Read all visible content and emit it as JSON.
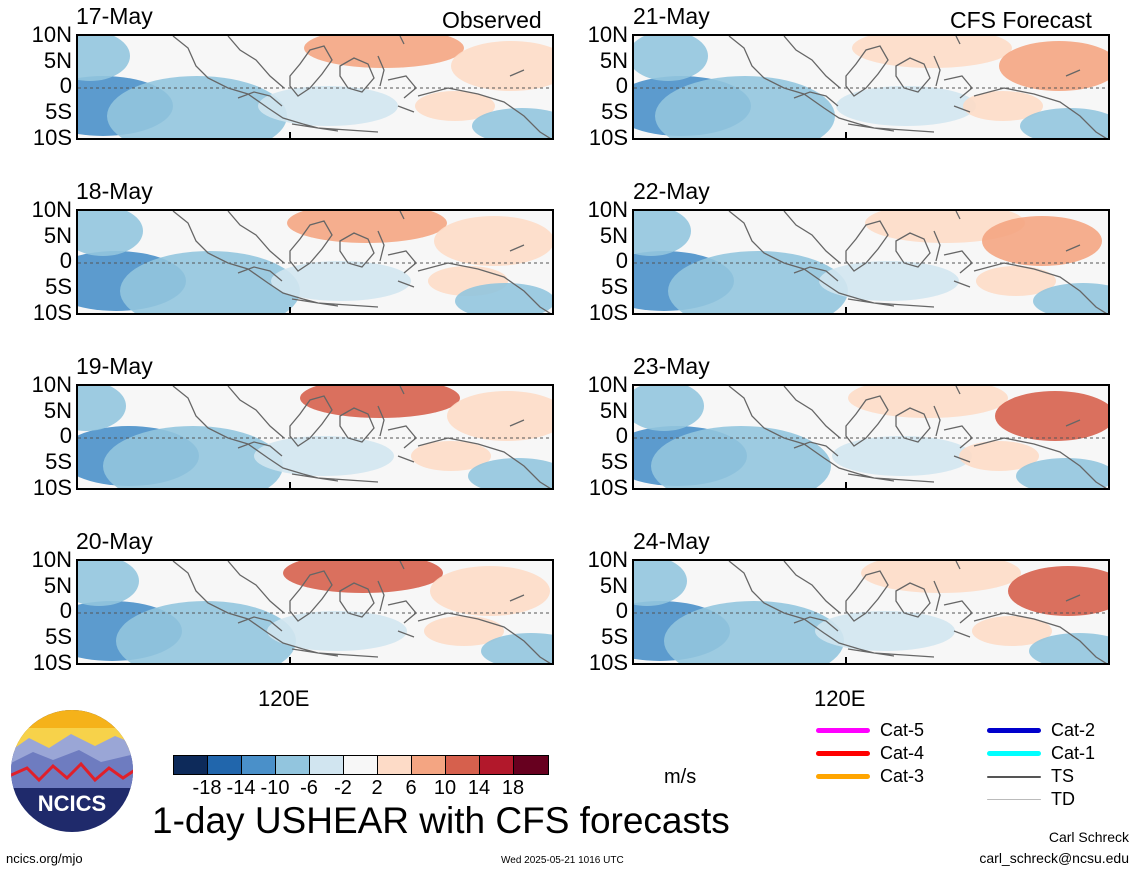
{
  "headers": {
    "observed": "Observed",
    "forecast": "CFS Forecast"
  },
  "observed_dates": [
    "17-May",
    "18-May",
    "19-May",
    "20-May"
  ],
  "forecast_dates": [
    "21-May",
    "22-May",
    "23-May",
    "24-May"
  ],
  "lat_labels": [
    "10N",
    "5N",
    "0",
    "5S",
    "10S"
  ],
  "x_tick": "120E",
  "colorbar": {
    "labels": [
      "-18",
      "-14",
      "-10",
      "-6",
      "-2",
      "2",
      "6",
      "10",
      "14",
      "18"
    ],
    "colors": [
      "#0d2a5a",
      "#2166ac",
      "#4a90c9",
      "#92c5de",
      "#d1e5f0",
      "#f7f7f7",
      "#fddbc7",
      "#f4a582",
      "#d6604d",
      "#b2182b",
      "#67001f"
    ],
    "unit": "m/s"
  },
  "title": "1-day USHEAR with CFS forecasts",
  "logo_text": "NCICS",
  "legend": [
    {
      "label": "Cat-5",
      "color": "#ff00ff"
    },
    {
      "label": "Cat-4",
      "color": "#ff0000"
    },
    {
      "label": "Cat-3",
      "color": "#ffa500"
    },
    {
      "label": "Cat-2",
      "color": "#0000cc"
    },
    {
      "label": "Cat-1",
      "color": "#00ffff"
    },
    {
      "label": "TS",
      "color": "#555555"
    },
    {
      "label": "TD",
      "color": "#bbbbbb"
    }
  ],
  "footer": {
    "left": "ncics.org/mjo",
    "center": "Wed 2025-05-21 1016 UTC",
    "author": "Carl Schreck",
    "email": "carl_schreck@ncsu.edu"
  }
}
